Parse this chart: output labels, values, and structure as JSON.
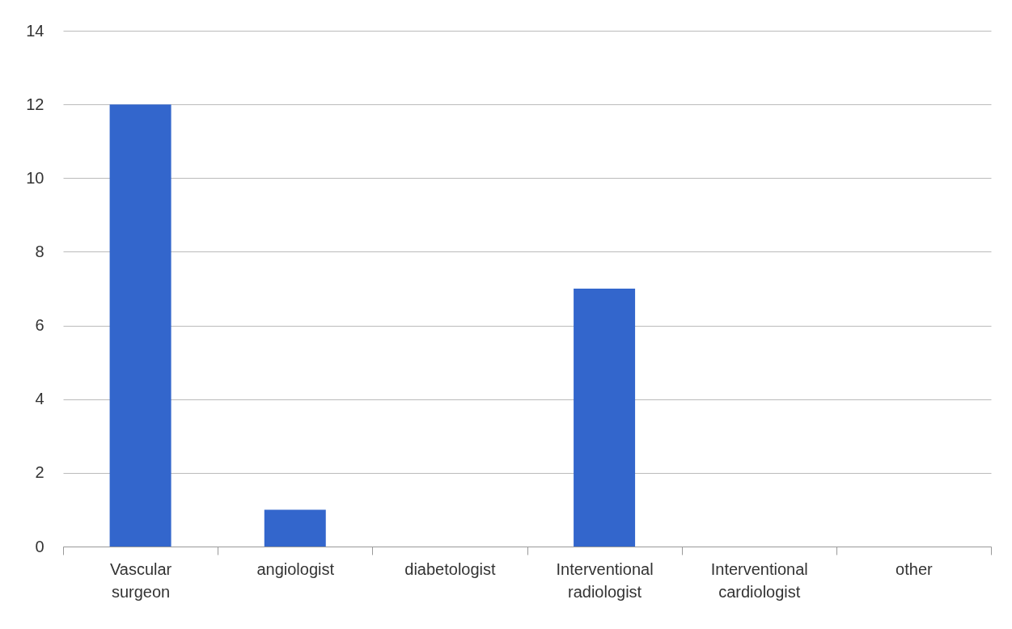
{
  "chart_data": {
    "type": "bar",
    "categories": [
      "Vascular surgeon",
      "angiologist",
      "diabetologist",
      "Interventional radiologist",
      "Interventional cardiologist",
      "other"
    ],
    "values": [
      12,
      1,
      0,
      7,
      0,
      0
    ],
    "color": "#3366cc",
    "ylim": [
      0,
      14
    ],
    "yticks": [
      0,
      2,
      4,
      6,
      8,
      10,
      12,
      14
    ],
    "grid": "y"
  }
}
